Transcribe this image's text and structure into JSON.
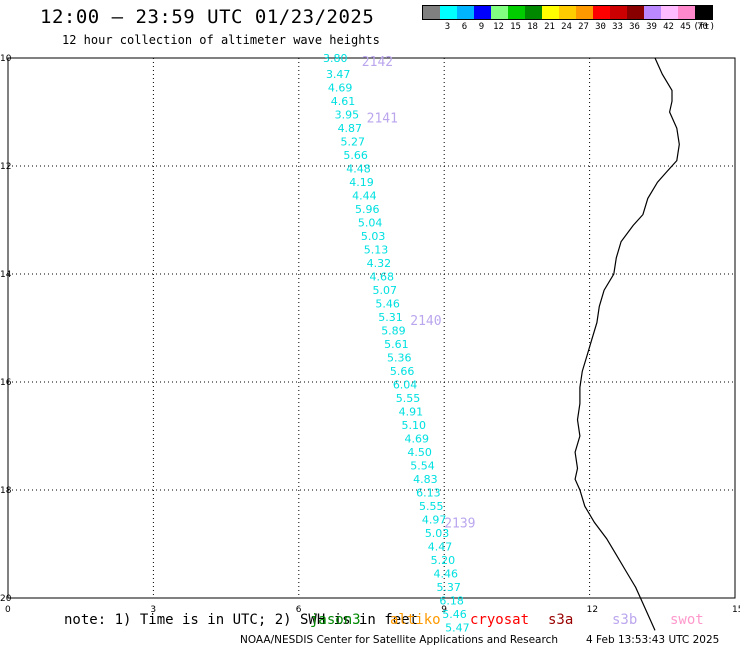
{
  "header": {
    "title": "12:00 – 23:59 UTC 01/23/2025",
    "subtitle": "12 hour collection of altimeter wave heights"
  },
  "color_scale": {
    "colors": [
      "#808080",
      "#00ffff",
      "#00b4ff",
      "#0000ff",
      "#80ff80",
      "#00cc00",
      "#008800",
      "#ffff00",
      "#ffcc00",
      "#ff9900",
      "#ff0000",
      "#cc0000",
      "#880000",
      "#bb88ff",
      "#ffbbff",
      "#ff88cc",
      "#000000"
    ],
    "labels": [
      "",
      "3",
      "6",
      "9",
      "12",
      "15",
      "18",
      "21",
      "24",
      "27",
      "30",
      "33",
      "36",
      "39",
      "42",
      "45",
      "70"
    ],
    "unit": "(ft)"
  },
  "axes": {
    "lat_ticks": [
      "10",
      "12",
      "14",
      "16",
      "18",
      "20"
    ],
    "lon_ticks": [
      "0",
      "3",
      "6",
      "9",
      "12",
      "15"
    ]
  },
  "track": {
    "color": "#00e0e0",
    "points": [
      {
        "lon": 6.5,
        "lat": -10.0,
        "swh": "3.80"
      },
      {
        "lon": 6.56,
        "lat": -10.3,
        "swh": "3.47"
      },
      {
        "lon": 6.6,
        "lat": -10.55,
        "swh": "4.69"
      },
      {
        "lon": 6.66,
        "lat": -10.8,
        "swh": "4.61"
      },
      {
        "lon": 6.74,
        "lat": -11.05,
        "swh": "3.95"
      },
      {
        "lon": 6.8,
        "lat": -11.3,
        "swh": "4.87"
      },
      {
        "lon": 6.86,
        "lat": -11.55,
        "swh": "5.27"
      },
      {
        "lon": 6.92,
        "lat": -11.8,
        "swh": "5.66"
      },
      {
        "lon": 6.98,
        "lat": -12.05,
        "swh": "4.48"
      },
      {
        "lon": 7.04,
        "lat": -12.3,
        "swh": "4.19"
      },
      {
        "lon": 7.1,
        "lat": -12.55,
        "swh": "4.44"
      },
      {
        "lon": 7.16,
        "lat": -12.8,
        "swh": "5.96"
      },
      {
        "lon": 7.22,
        "lat": -13.05,
        "swh": "5.04"
      },
      {
        "lon": 7.28,
        "lat": -13.3,
        "swh": "5.03"
      },
      {
        "lon": 7.34,
        "lat": -13.55,
        "swh": "5.13"
      },
      {
        "lon": 7.4,
        "lat": -13.8,
        "swh": "4.32"
      },
      {
        "lon": 7.46,
        "lat": -14.05,
        "swh": "4.68"
      },
      {
        "lon": 7.52,
        "lat": -14.3,
        "swh": "5.07"
      },
      {
        "lon": 7.58,
        "lat": -14.55,
        "swh": "5.46"
      },
      {
        "lon": 7.64,
        "lat": -14.8,
        "swh": "5.31"
      },
      {
        "lon": 7.7,
        "lat": -15.05,
        "swh": "5.89"
      },
      {
        "lon": 7.76,
        "lat": -15.3,
        "swh": "5.61"
      },
      {
        "lon": 7.82,
        "lat": -15.55,
        "swh": "5.36"
      },
      {
        "lon": 7.88,
        "lat": -15.8,
        "swh": "5.66"
      },
      {
        "lon": 7.94,
        "lat": -16.05,
        "swh": "6.04"
      },
      {
        "lon": 8.0,
        "lat": -16.3,
        "swh": "5.55"
      },
      {
        "lon": 8.06,
        "lat": -16.55,
        "swh": "4.91"
      },
      {
        "lon": 8.12,
        "lat": -16.8,
        "swh": "5.10"
      },
      {
        "lon": 8.18,
        "lat": -17.05,
        "swh": "4.69"
      },
      {
        "lon": 8.24,
        "lat": -17.3,
        "swh": "4.50"
      },
      {
        "lon": 8.3,
        "lat": -17.55,
        "swh": "5.54"
      },
      {
        "lon": 8.36,
        "lat": -17.8,
        "swh": "4.83"
      },
      {
        "lon": 8.42,
        "lat": -18.05,
        "swh": "6.13"
      },
      {
        "lon": 8.48,
        "lat": -18.3,
        "swh": "5.55"
      },
      {
        "lon": 8.54,
        "lat": -18.55,
        "swh": "4.97"
      },
      {
        "lon": 8.6,
        "lat": -18.8,
        "swh": "5.03"
      },
      {
        "lon": 8.66,
        "lat": -19.05,
        "swh": "4.47"
      },
      {
        "lon": 8.72,
        "lat": -19.3,
        "swh": "5.20"
      },
      {
        "lon": 8.78,
        "lat": -19.55,
        "swh": "4.46"
      },
      {
        "lon": 8.84,
        "lat": -19.8,
        "swh": "5.37"
      },
      {
        "lon": 8.9,
        "lat": -20.05,
        "swh": "6.18"
      },
      {
        "lon": 8.96,
        "lat": -20.3,
        "swh": "5.46"
      },
      {
        "lon": 9.02,
        "lat": -20.55,
        "swh": "5.47"
      }
    ],
    "pass_labels": [
      {
        "text": "2142",
        "lon": 7.3,
        "lat": -10.0
      },
      {
        "text": "2141",
        "lon": 7.4,
        "lat": -11.05
      },
      {
        "text": "2140",
        "lon": 8.3,
        "lat": -14.8
      },
      {
        "text": "2139",
        "lon": 9.0,
        "lat": -18.55
      }
    ],
    "pass_label_color": "#bba6ee"
  },
  "coastline": {
    "lonlat": [
      [
        13.35,
        -10.0
      ],
      [
        13.5,
        -10.3
      ],
      [
        13.7,
        -10.6
      ],
      [
        13.7,
        -10.8
      ],
      [
        13.65,
        -11.0
      ],
      [
        13.8,
        -11.3
      ],
      [
        13.85,
        -11.6
      ],
      [
        13.8,
        -11.9
      ],
      [
        13.6,
        -12.1
      ],
      [
        13.4,
        -12.3
      ],
      [
        13.2,
        -12.6
      ],
      [
        13.1,
        -12.9
      ],
      [
        12.9,
        -13.1
      ],
      [
        12.65,
        -13.4
      ],
      [
        12.55,
        -13.7
      ],
      [
        12.5,
        -14.0
      ],
      [
        12.3,
        -14.3
      ],
      [
        12.2,
        -14.6
      ],
      [
        12.15,
        -14.9
      ],
      [
        12.05,
        -15.2
      ],
      [
        11.95,
        -15.5
      ],
      [
        11.85,
        -15.8
      ],
      [
        11.8,
        -16.1
      ],
      [
        11.8,
        -16.4
      ],
      [
        11.75,
        -16.7
      ],
      [
        11.8,
        -17.0
      ],
      [
        11.7,
        -17.3
      ],
      [
        11.75,
        -17.6
      ],
      [
        11.7,
        -17.8
      ],
      [
        11.8,
        -18.0
      ],
      [
        11.9,
        -18.3
      ],
      [
        12.1,
        -18.6
      ],
      [
        12.35,
        -18.9
      ],
      [
        12.55,
        -19.2
      ],
      [
        12.75,
        -19.5
      ],
      [
        12.95,
        -19.8
      ],
      [
        13.1,
        -20.1
      ],
      [
        13.25,
        -20.4
      ],
      [
        13.35,
        -20.6
      ]
    ]
  },
  "footer": {
    "note": "note: 1) Time is in UTC; 2) SWH is in feet",
    "satellites": [
      {
        "name": "jason3",
        "color": "#008800"
      },
      {
        "name": "altiko",
        "color": "#ff9900"
      },
      {
        "name": "cryosat",
        "color": "#ff0000"
      },
      {
        "name": "s3a",
        "color": "#990000"
      },
      {
        "name": "s3b",
        "color": "#bba6ee"
      },
      {
        "name": "swot",
        "color": "#ff99cc"
      }
    ],
    "credit": "NOAA/NESDIS Center for Satellite Applications and Research",
    "timestamp": "4 Feb 13:53:43 UTC 2025"
  }
}
